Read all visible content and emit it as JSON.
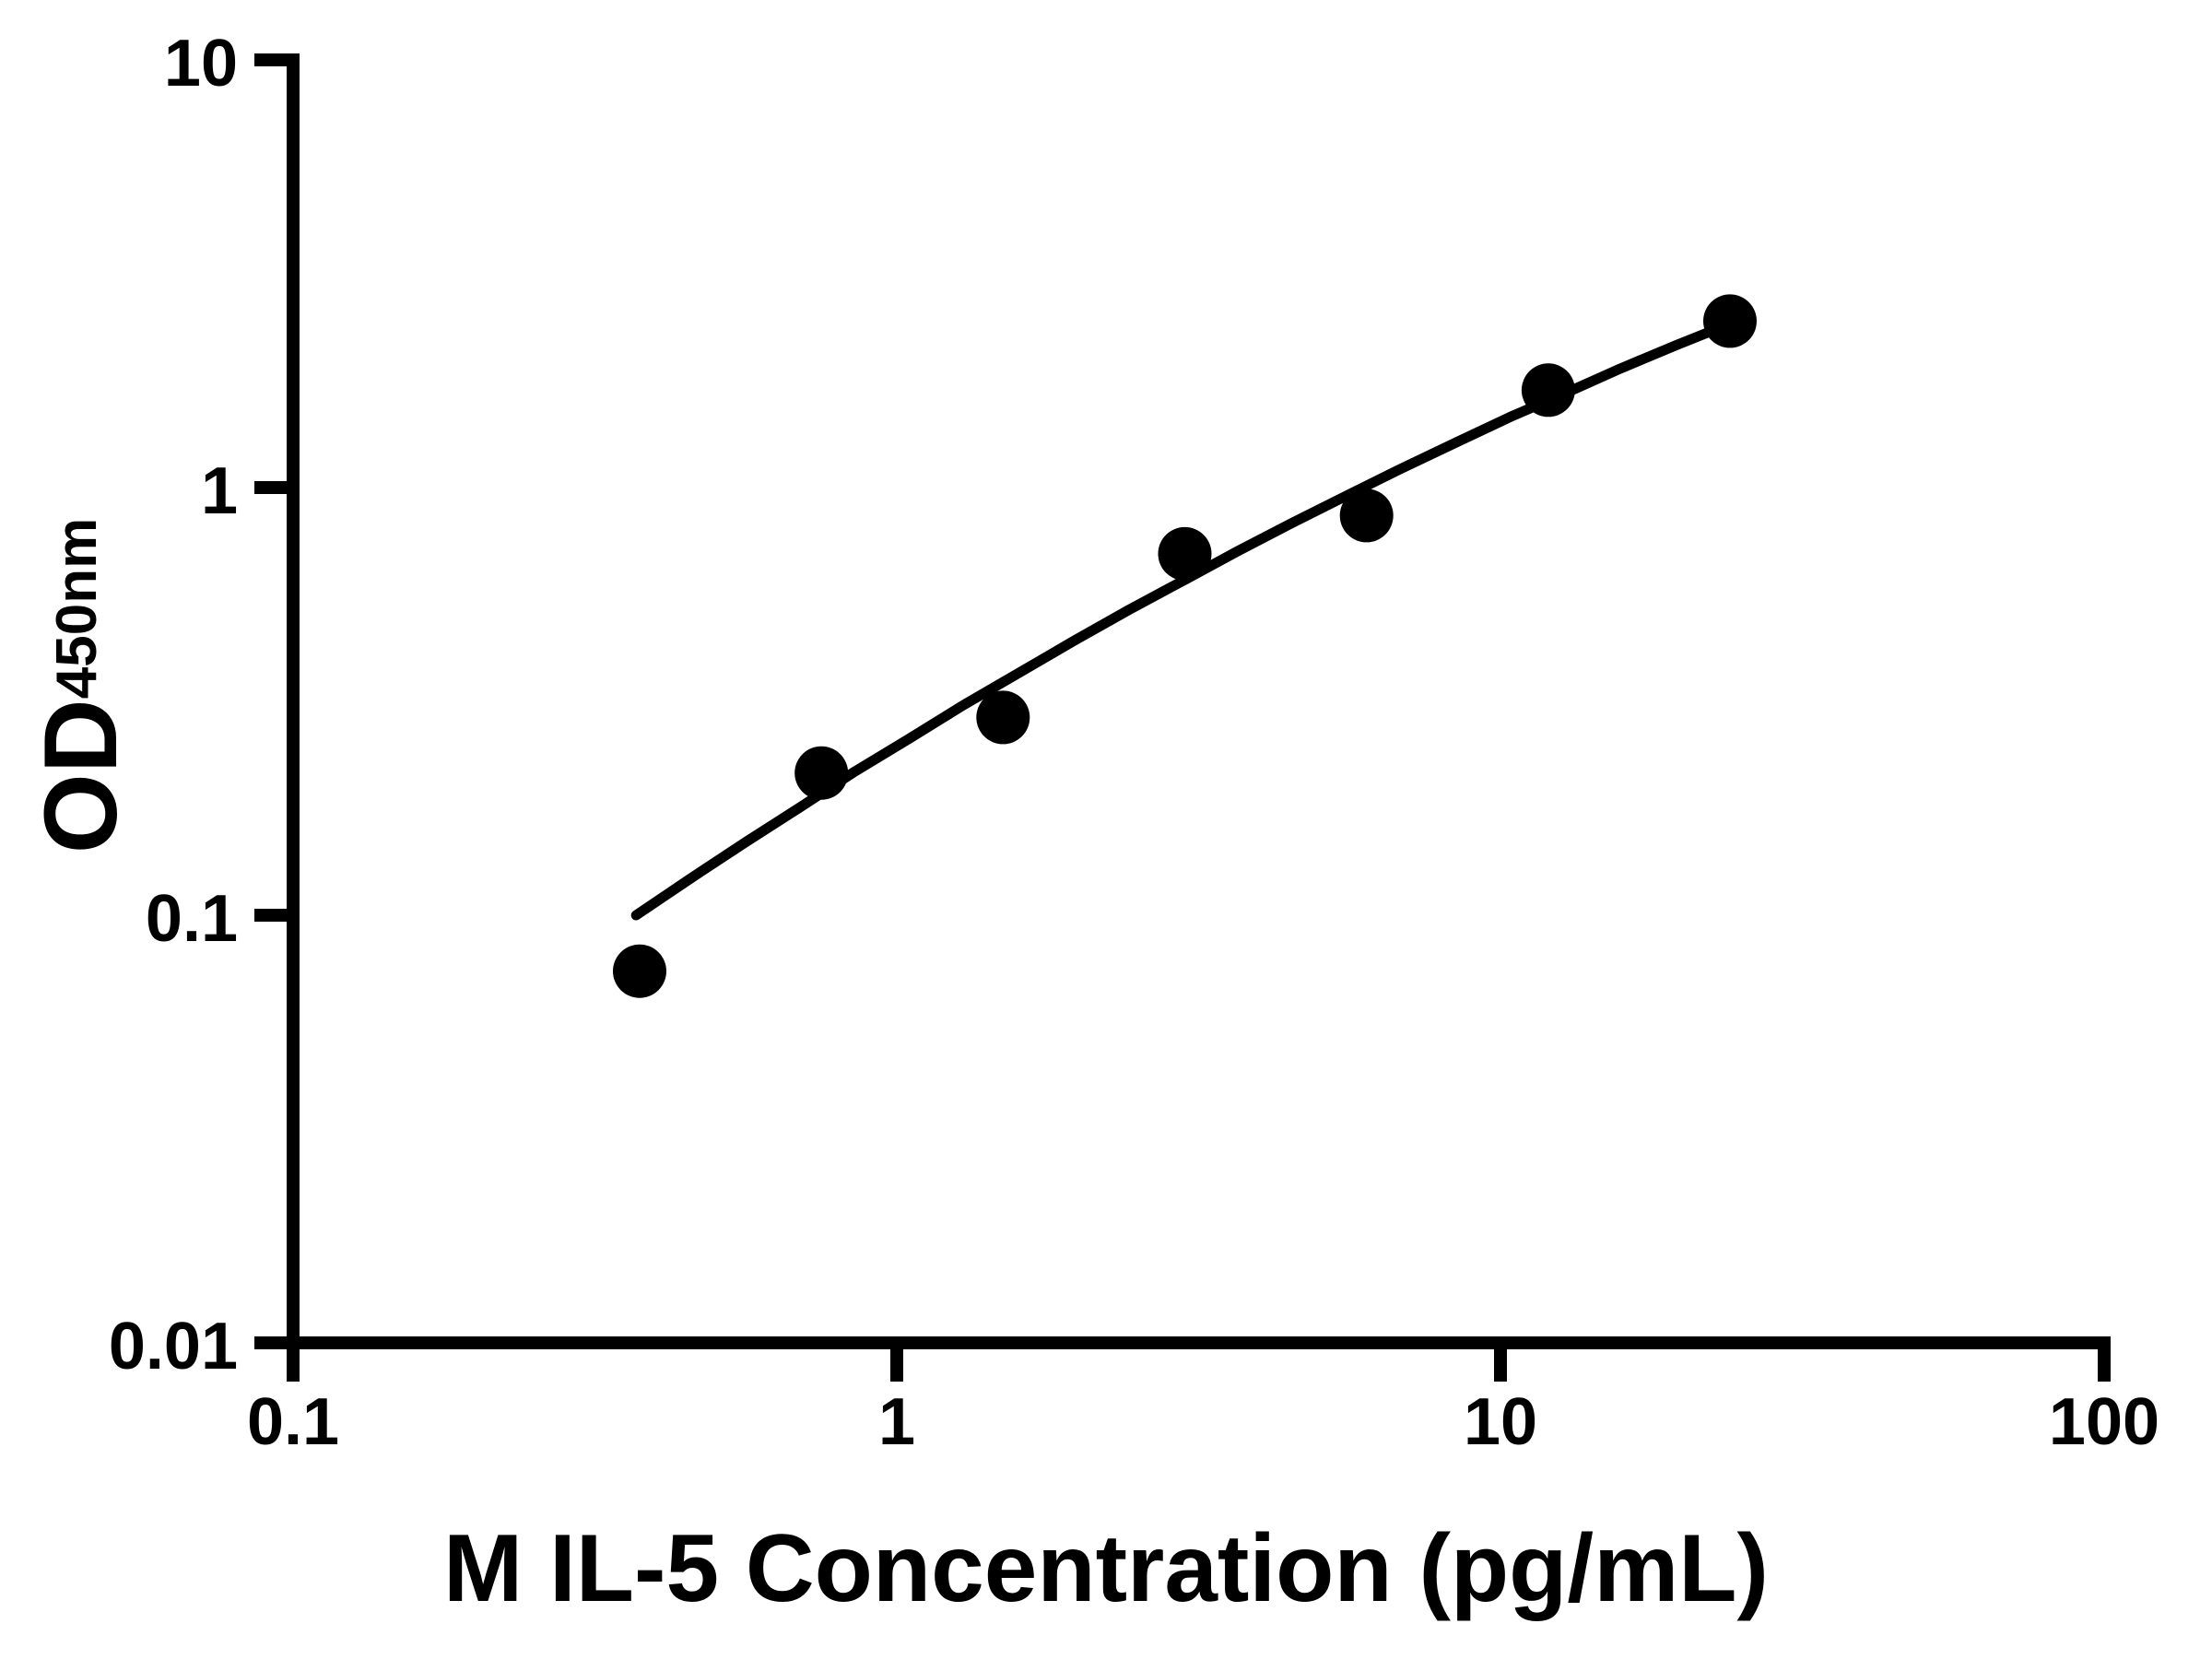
{
  "figure": {
    "background": "#ffffff",
    "ink_color": "#000000"
  },
  "chart_data": {
    "type": "scatter",
    "title": "",
    "xlabel": "M IL-5 Concentration (pg/mL)",
    "ylabel": "OD450nm",
    "ylabel_main": "OD",
    "ylabel_sub": "450nm",
    "x_scale": "log10",
    "y_scale": "log10",
    "xlim": [
      0.1,
      100
    ],
    "ylim": [
      0.01,
      10
    ],
    "grid": false,
    "legend": "none",
    "x_ticks": [
      {
        "value": 0.1,
        "label": "0.1"
      },
      {
        "value": 1,
        "label": "1"
      },
      {
        "value": 10,
        "label": "10"
      },
      {
        "value": 100,
        "label": "100"
      }
    ],
    "y_ticks": [
      {
        "value": 0.01,
        "label": "0.01"
      },
      {
        "value": 0.1,
        "label": "0.1"
      },
      {
        "value": 1,
        "label": "1"
      },
      {
        "value": 10,
        "label": "10"
      }
    ],
    "series": [
      {
        "name": "standard-points",
        "type": "scatter",
        "marker": "filled-circle",
        "color": "#000000",
        "points": [
          {
            "x": 0.375,
            "y": 0.074
          },
          {
            "x": 0.75,
            "y": 0.215
          },
          {
            "x": 1.5,
            "y": 0.29
          },
          {
            "x": 3,
            "y": 0.7
          },
          {
            "x": 6,
            "y": 0.86
          },
          {
            "x": 12,
            "y": 1.69
          },
          {
            "x": 24,
            "y": 2.45
          }
        ]
      },
      {
        "name": "fit-curve",
        "type": "line",
        "color": "#000000",
        "points": [
          {
            "x": 0.37,
            "y": 0.1
          },
          {
            "x": 0.456,
            "y": 0.122
          },
          {
            "x": 0.561,
            "y": 0.148
          },
          {
            "x": 0.692,
            "y": 0.179
          },
          {
            "x": 0.853,
            "y": 0.217
          },
          {
            "x": 1.05,
            "y": 0.259
          },
          {
            "x": 1.29,
            "y": 0.31
          },
          {
            "x": 1.6,
            "y": 0.37
          },
          {
            "x": 1.96,
            "y": 0.437
          },
          {
            "x": 2.42,
            "y": 0.517
          },
          {
            "x": 2.99,
            "y": 0.607
          },
          {
            "x": 3.67,
            "y": 0.71
          },
          {
            "x": 4.53,
            "y": 0.828
          },
          {
            "x": 5.59,
            "y": 0.961
          },
          {
            "x": 6.87,
            "y": 1.11
          },
          {
            "x": 8.47,
            "y": 1.278
          },
          {
            "x": 10.4,
            "y": 1.465
          },
          {
            "x": 12.9,
            "y": 1.67
          },
          {
            "x": 15.8,
            "y": 1.898
          },
          {
            "x": 19.5,
            "y": 2.149
          },
          {
            "x": 24.1,
            "y": 2.423
          }
        ]
      }
    ]
  }
}
